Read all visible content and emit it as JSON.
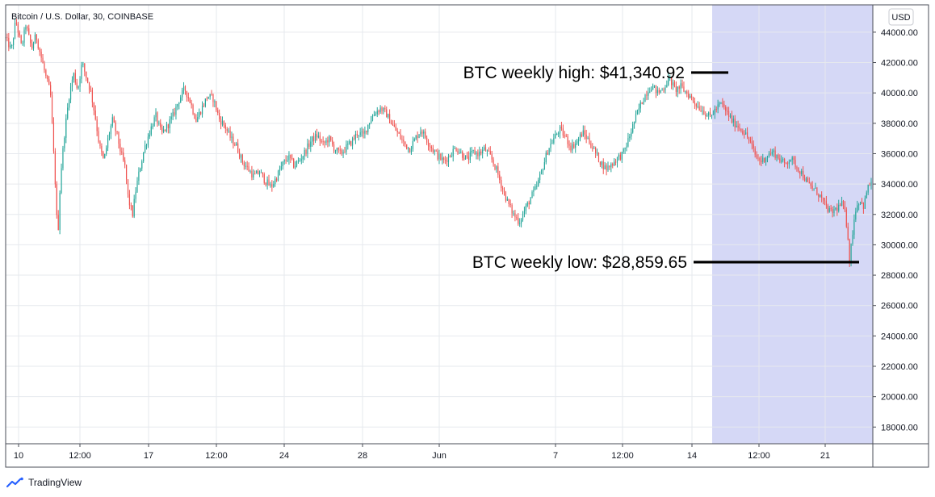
{
  "chart_data": {
    "type": "candlestick",
    "title": "Bitcoin / U.S. Dollar, 30, COINBASE",
    "currency_label": "USD",
    "y_ticks": [
      "44000.00",
      "42000.00",
      "40000.00",
      "38000.00",
      "36000.00",
      "34000.00",
      "32000.00",
      "30000.00",
      "28000.00",
      "26000.00",
      "24000.00",
      "22000.00",
      "20000.00",
      "18000.00"
    ],
    "x_ticks": [
      "10",
      "12:00",
      "17",
      "12:00",
      "24",
      "28",
      "Jun",
      "7",
      "12:00",
      "14",
      "12:00",
      "21"
    ],
    "ylim": [
      16900,
      45800
    ],
    "grid": true,
    "highlight_range": {
      "from_x_tick": "14",
      "to": "end"
    },
    "path": [
      [
        0.0,
        43600
      ],
      [
        0.004,
        42800
      ],
      [
        0.007,
        44800
      ],
      [
        0.011,
        43000
      ],
      [
        0.014,
        44500
      ],
      [
        0.018,
        42900
      ],
      [
        0.021,
        43800
      ],
      [
        0.025,
        42200
      ],
      [
        0.028,
        41000
      ],
      [
        0.031,
        40000
      ],
      [
        0.033,
        36500
      ],
      [
        0.035,
        33000
      ],
      [
        0.036,
        30100
      ],
      [
        0.038,
        34500
      ],
      [
        0.041,
        37500
      ],
      [
        0.044,
        39800
      ],
      [
        0.047,
        41300
      ],
      [
        0.05,
        40200
      ],
      [
        0.053,
        42000
      ],
      [
        0.056,
        41000
      ],
      [
        0.059,
        40100
      ],
      [
        0.062,
        38500
      ],
      [
        0.065,
        36500
      ],
      [
        0.068,
        35500
      ],
      [
        0.071,
        37000
      ],
      [
        0.074,
        38200
      ],
      [
        0.077,
        37300
      ],
      [
        0.08,
        36000
      ],
      [
        0.083,
        35000
      ],
      [
        0.085,
        33000
      ],
      [
        0.088,
        32000
      ],
      [
        0.09,
        33500
      ],
      [
        0.093,
        35000
      ],
      [
        0.096,
        36300
      ],
      [
        0.1,
        37500
      ],
      [
        0.104,
        38500
      ],
      [
        0.108,
        37300
      ],
      [
        0.112,
        37800
      ],
      [
        0.116,
        38500
      ],
      [
        0.12,
        39500
      ],
      [
        0.124,
        40300
      ],
      [
        0.128,
        39400
      ],
      [
        0.132,
        38200
      ],
      [
        0.136,
        39000
      ],
      [
        0.14,
        39800
      ],
      [
        0.144,
        39600
      ],
      [
        0.148,
        38300
      ],
      [
        0.152,
        37800
      ],
      [
        0.156,
        37000
      ],
      [
        0.16,
        36500
      ],
      [
        0.164,
        35500
      ],
      [
        0.168,
        35000
      ],
      [
        0.172,
        34500
      ],
      [
        0.176,
        34800
      ],
      [
        0.18,
        34200
      ],
      [
        0.184,
        33800
      ],
      [
        0.188,
        34500
      ],
      [
        0.192,
        35300
      ],
      [
        0.196,
        35800
      ],
      [
        0.2,
        35200
      ],
      [
        0.204,
        35600
      ],
      [
        0.208,
        36200
      ],
      [
        0.212,
        36900
      ],
      [
        0.216,
        37200
      ],
      [
        0.22,
        36600
      ],
      [
        0.224,
        37000
      ],
      [
        0.228,
        36300
      ],
      [
        0.232,
        36000
      ],
      [
        0.236,
        36400
      ],
      [
        0.24,
        36800
      ],
      [
        0.244,
        37400
      ],
      [
        0.248,
        37200
      ],
      [
        0.252,
        38100
      ],
      [
        0.256,
        38700
      ],
      [
        0.26,
        39000
      ],
      [
        0.264,
        38600
      ],
      [
        0.268,
        37900
      ],
      [
        0.272,
        37300
      ],
      [
        0.276,
        36700
      ],
      [
        0.28,
        36300
      ],
      [
        0.284,
        37000
      ],
      [
        0.288,
        37600
      ],
      [
        0.292,
        36900
      ],
      [
        0.296,
        36300
      ],
      [
        0.3,
        35800
      ],
      [
        0.304,
        35500
      ],
      [
        0.308,
        35900
      ],
      [
        0.312,
        36400
      ],
      [
        0.316,
        36000
      ],
      [
        0.32,
        35600
      ],
      [
        0.324,
        36100
      ],
      [
        0.328,
        36000
      ],
      [
        0.332,
        36300
      ],
      [
        0.336,
        35800
      ],
      [
        0.34,
        35000
      ],
      [
        0.344,
        33800
      ],
      [
        0.348,
        32800
      ],
      [
        0.352,
        32000
      ],
      [
        0.356,
        31500
      ],
      [
        0.36,
        32300
      ],
      [
        0.364,
        33100
      ],
      [
        0.368,
        33800
      ],
      [
        0.372,
        35000
      ],
      [
        0.376,
        36300
      ],
      [
        0.38,
        37000
      ],
      [
        0.384,
        37600
      ],
      [
        0.388,
        37100
      ],
      [
        0.392,
        36400
      ],
      [
        0.396,
        36800
      ],
      [
        0.4,
        37400
      ],
      [
        0.404,
        36900
      ],
      [
        0.408,
        36200
      ],
      [
        0.412,
        35500
      ],
      [
        0.416,
        35000
      ],
      [
        0.42,
        35300
      ],
      [
        0.424,
        35700
      ],
      [
        0.428,
        36000
      ],
      [
        0.432,
        37000
      ],
      [
        0.436,
        38200
      ],
      [
        0.44,
        39200
      ],
      [
        0.444,
        40000
      ],
      [
        0.448,
        40500
      ],
      [
        0.452,
        40000
      ],
      [
        0.456,
        40300
      ],
      [
        0.46,
        41000
      ],
      [
        0.464,
        40200
      ],
      [
        0.468,
        40400
      ],
      [
        0.472,
        40000
      ],
      [
        0.476,
        39600
      ],
      [
        0.48,
        39100
      ],
      [
        0.484,
        38800
      ],
      [
        0.488,
        38400
      ],
      [
        0.492,
        38900
      ],
      [
        0.496,
        39300
      ],
      [
        0.5,
        38700
      ],
      [
        0.504,
        38100
      ],
      [
        0.508,
        37800
      ],
      [
        0.512,
        37400
      ],
      [
        0.516,
        36800
      ],
      [
        0.52,
        35800
      ],
      [
        0.524,
        35500
      ],
      [
        0.528,
        35900
      ],
      [
        0.532,
        36100
      ],
      [
        0.536,
        35700
      ],
      [
        0.54,
        35300
      ],
      [
        0.544,
        35700
      ],
      [
        0.548,
        35200
      ],
      [
        0.552,
        34700
      ],
      [
        0.556,
        34000
      ],
      [
        0.56,
        33700
      ],
      [
        0.564,
        33300
      ],
      [
        0.568,
        32600
      ],
      [
        0.572,
        32100
      ],
      [
        0.576,
        32400
      ],
      [
        0.58,
        32700
      ],
      [
        0.582,
        32000
      ],
      [
        0.584,
        30500
      ],
      [
        0.585,
        28900
      ],
      [
        0.587,
        30800
      ],
      [
        0.589,
        32300
      ],
      [
        0.592,
        33000
      ],
      [
        0.595,
        32500
      ],
      [
        0.597,
        33600
      ],
      [
        0.6,
        34200
      ]
    ],
    "annotations": [
      {
        "label": "BTC weekly high: $41,340.92",
        "value": 41340.92
      },
      {
        "label": "BTC weekly low: $28,859.65",
        "value": 28859.65
      }
    ]
  },
  "footer": {
    "brand_label": "TradingView",
    "logo_icon": "tradingview-logo-icon"
  },
  "colors": {
    "up": "#26a69a",
    "down": "#ef5350",
    "grid": "#e6e9ee",
    "highlight": "#d5d8f6",
    "axis_line": "#4a4d57",
    "annotation": "#000000"
  }
}
